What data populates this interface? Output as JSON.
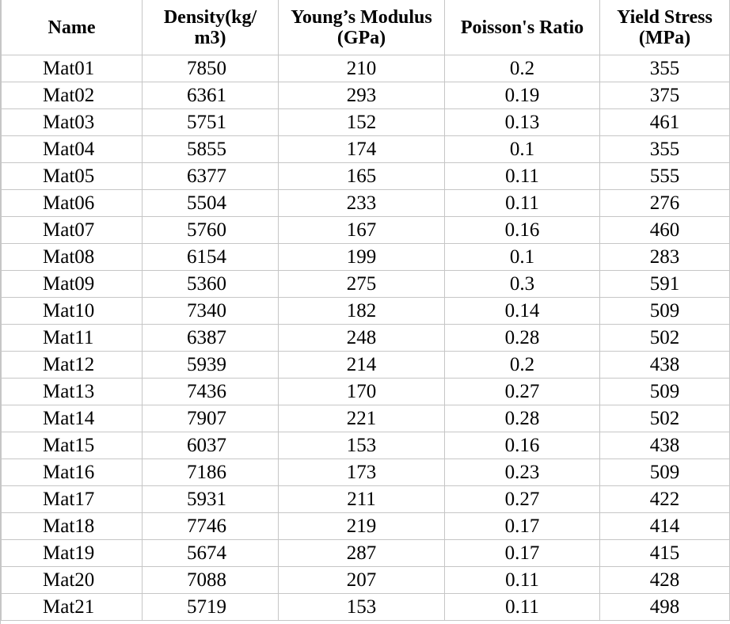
{
  "table": {
    "headers": {
      "name": "Name",
      "density_line1": "Density(kg/",
      "density_line2": "m3)",
      "young_line1": "Young’s Modulus",
      "young_line2": "(GPa)",
      "poisson": "Poisson's Ratio",
      "yield_line1": "Yield Stress",
      "yield_line2": "(MPa)"
    },
    "rows": [
      {
        "name": "Mat01",
        "density": "7850",
        "young": "210",
        "poisson": "0.2",
        "yield": "355"
      },
      {
        "name": "Mat02",
        "density": "6361",
        "young": "293",
        "poisson": "0.19",
        "yield": "375"
      },
      {
        "name": "Mat03",
        "density": "5751",
        "young": "152",
        "poisson": "0.13",
        "yield": "461"
      },
      {
        "name": "Mat04",
        "density": "5855",
        "young": "174",
        "poisson": "0.1",
        "yield": "355"
      },
      {
        "name": "Mat05",
        "density": "6377",
        "young": "165",
        "poisson": "0.11",
        "yield": "555"
      },
      {
        "name": "Mat06",
        "density": "5504",
        "young": "233",
        "poisson": "0.11",
        "yield": "276"
      },
      {
        "name": "Mat07",
        "density": "5760",
        "young": "167",
        "poisson": "0.16",
        "yield": "460"
      },
      {
        "name": "Mat08",
        "density": "6154",
        "young": "199",
        "poisson": "0.1",
        "yield": "283"
      },
      {
        "name": "Mat09",
        "density": "5360",
        "young": "275",
        "poisson": "0.3",
        "yield": "591"
      },
      {
        "name": "Mat10",
        "density": "7340",
        "young": "182",
        "poisson": "0.14",
        "yield": "509"
      },
      {
        "name": "Mat11",
        "density": "6387",
        "young": "248",
        "poisson": "0.28",
        "yield": "502"
      },
      {
        "name": "Mat12",
        "density": "5939",
        "young": "214",
        "poisson": "0.2",
        "yield": "438"
      },
      {
        "name": "Mat13",
        "density": "7436",
        "young": "170",
        "poisson": "0.27",
        "yield": "509"
      },
      {
        "name": "Mat14",
        "density": "7907",
        "young": "221",
        "poisson": "0.28",
        "yield": "502"
      },
      {
        "name": "Mat15",
        "density": "6037",
        "young": "153",
        "poisson": "0.16",
        "yield": "438"
      },
      {
        "name": "Mat16",
        "density": "7186",
        "young": "173",
        "poisson": "0.23",
        "yield": "509"
      },
      {
        "name": "Mat17",
        "density": "5931",
        "young": "211",
        "poisson": "0.27",
        "yield": "422"
      },
      {
        "name": "Mat18",
        "density": "7746",
        "young": "219",
        "poisson": "0.17",
        "yield": "414"
      },
      {
        "name": "Mat19",
        "density": "5674",
        "young": "287",
        "poisson": "0.17",
        "yield": "415"
      },
      {
        "name": "Mat20",
        "density": "7088",
        "young": "207",
        "poisson": "0.11",
        "yield": "428"
      },
      {
        "name": "Mat21",
        "density": "5719",
        "young": "153",
        "poisson": "0.11",
        "yield": "498"
      }
    ]
  },
  "colors": {
    "gridline": "#c6c6c6",
    "text": "#000000",
    "background": "#ffffff"
  }
}
